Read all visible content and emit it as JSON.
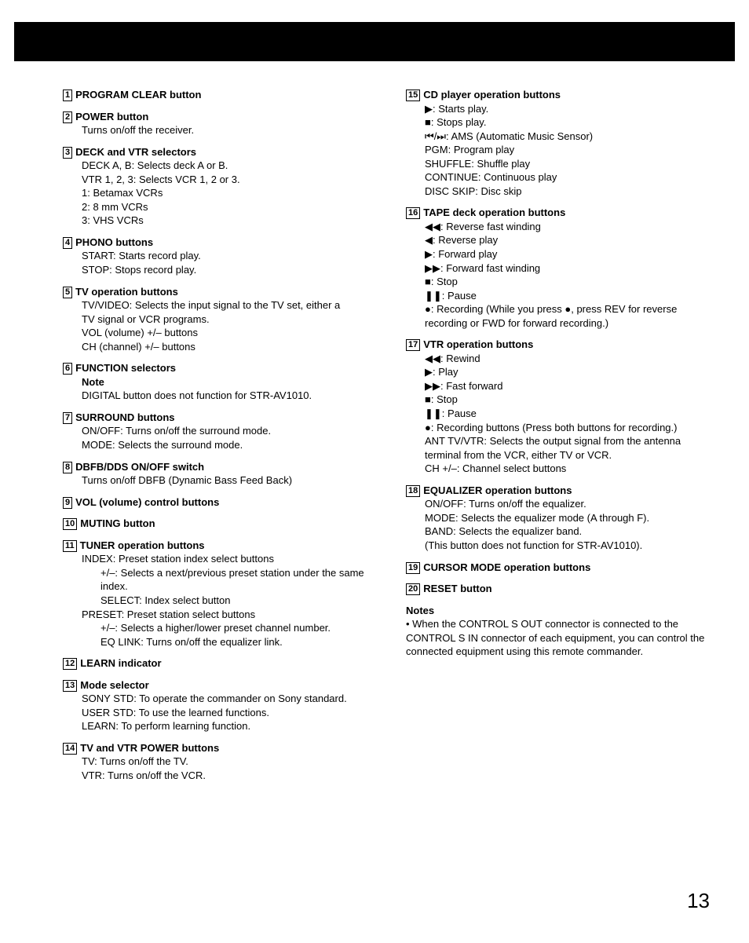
{
  "page_number": "13",
  "left": [
    {
      "n": "1",
      "t": "PROGRAM CLEAR button",
      "lines": []
    },
    {
      "n": "2",
      "t": "POWER button",
      "lines": [
        "Turns on/off the receiver."
      ]
    },
    {
      "n": "3",
      "t": "DECK and VTR selectors",
      "lines": [
        "DECK A, B: Selects deck A or B.",
        "VTR 1, 2, 3: Selects VCR 1, 2 or 3."
      ],
      "sub": [
        "1: Betamax VCRs",
        "2: 8 mm VCRs",
        "3: VHS VCRs"
      ]
    },
    {
      "n": "4",
      "t": "PHONO buttons",
      "lines": [
        "START: Starts record play.",
        "STOP: Stops record play."
      ]
    },
    {
      "n": "5",
      "t": "TV operation buttons",
      "lines": [
        "TV/VIDEO: Selects the input signal to the TV set, either a"
      ],
      "sub": [
        "TV signal or VCR programs."
      ],
      "lines2": [
        "VOL (volume) +/– buttons",
        "CH (channel) +/– buttons"
      ]
    },
    {
      "n": "6",
      "t": "FUNCTION selectors",
      "noteTitle": "Note",
      "lines": [
        "DIGITAL button does not function for STR-AV1010."
      ]
    },
    {
      "n": "7",
      "t": "SURROUND buttons",
      "lines": [
        "ON/OFF: Turns on/off the surround mode.",
        "MODE: Selects the surround mode."
      ]
    },
    {
      "n": "8",
      "t": "DBFB/DDS ON/OFF switch",
      "lines": [
        "Turns on/off DBFB (Dynamic Bass Feed Back)"
      ]
    },
    {
      "n": "9",
      "t": "VOL (volume) control buttons",
      "lines": []
    },
    {
      "n": "10",
      "t": "MUTING button",
      "lines": []
    },
    {
      "n": "11",
      "t": "TUNER operation buttons",
      "lines": [
        "INDEX: Preset station index select buttons"
      ],
      "sub2": [
        "+/–: Selects a next/previous preset station under the same index.",
        "SELECT: Index select button"
      ],
      "lines2": [
        "PRESET: Preset station select buttons"
      ],
      "sub2b": [
        "+/–: Selects a higher/lower preset channel number.",
        "EQ LINK: Turns on/off the equalizer link."
      ]
    },
    {
      "n": "12",
      "t": "LEARN indicator",
      "lines": []
    },
    {
      "n": "13",
      "t": "Mode selector",
      "lines": [
        "SONY STD: To operate the commander on Sony standard.",
        "USER STD: To use the learned functions.",
        "LEARN: To perform learning function."
      ]
    },
    {
      "n": "14",
      "t": "TV and VTR POWER buttons",
      "lines": [
        "TV: Turns on/off the TV.",
        "VTR: Turns on/off the VCR."
      ]
    }
  ],
  "right": [
    {
      "n": "15",
      "t": "CD player operation buttons",
      "iconlines": [
        {
          "i": "▶",
          "x": ": Starts play."
        },
        {
          "i": "■",
          "x": ": Stops play."
        },
        {
          "i": "⏮/⏭",
          "x": ": AMS (Automatic Music Sensor)"
        }
      ],
      "lines": [
        "PGM: Program play",
        "SHUFFLE: Shuffle play",
        "CONTINUE: Continuous play",
        "DISC SKIP: Disc skip"
      ]
    },
    {
      "n": "16",
      "t": "TAPE deck operation buttons",
      "iconlines": [
        {
          "i": "◀◀",
          "x": ": Reverse fast winding"
        },
        {
          "i": "◀",
          "x": ": Reverse play"
        },
        {
          "i": "▶",
          "x": ": Forward play"
        },
        {
          "i": "▶▶",
          "x": ": Forward fast winding"
        },
        {
          "i": "■",
          "x": ": Stop"
        },
        {
          "i": "❚❚",
          "x": ": Pause"
        },
        {
          "i": "●",
          "x": ": Recording (While you press ●, press REV for reverse"
        }
      ],
      "sub": [
        "recording or FWD for forward recording.)"
      ]
    },
    {
      "n": "17",
      "t": "VTR operation buttons",
      "iconlines": [
        {
          "i": "◀◀",
          "x": ": Rewind"
        },
        {
          "i": "▶",
          "x": ": Play"
        },
        {
          "i": "▶▶",
          "x": ": Fast forward"
        },
        {
          "i": "■",
          "x": ": Stop"
        },
        {
          "i": "❚❚",
          "x": ": Pause"
        },
        {
          "i": "●",
          "x": ": Recording buttons (Press both buttons for recording.)"
        }
      ],
      "lines": [
        "ANT TV/VTR: Selects the output signal from the antenna"
      ],
      "sub": [
        "terminal from the VCR, either TV or VCR."
      ],
      "lines2": [
        "CH +/–: Channel select buttons"
      ]
    },
    {
      "n": "18",
      "t": "EQUALIZER operation buttons",
      "lines": [
        "ON/OFF: Turns on/off the equalizer.",
        "MODE: Selects the equalizer mode (A through F).",
        "BAND: Selects the equalizer band.",
        "(This button does not function for STR-AV1010)."
      ]
    },
    {
      "n": "19",
      "t": "CURSOR MODE operation buttons",
      "lines": []
    },
    {
      "n": "20",
      "t": "RESET button",
      "lines": []
    }
  ],
  "notes": {
    "heading": "Notes",
    "text": "• When the CONTROL S OUT connector is connected to the CONTROL S IN connector of each equipment, you can control the connected equipment using this remote commander."
  }
}
